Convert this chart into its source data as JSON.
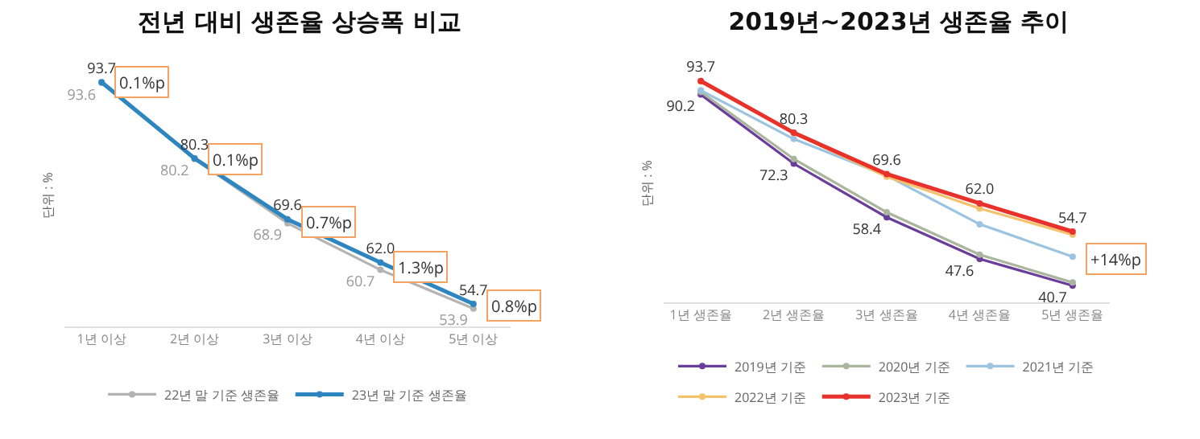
{
  "chart_data": [
    {
      "type": "line",
      "title": "전년 대비 생존율 상승폭 비교",
      "ylabel": "단위 : %",
      "categories": [
        "1년 이상",
        "2년 이상",
        "3년 이상",
        "4년 이상",
        "5년 이상"
      ],
      "series": [
        {
          "name": "22년 말 기준 생존율",
          "color": "#b3b3b3",
          "values": [
            93.6,
            80.2,
            68.9,
            60.7,
            53.9
          ],
          "value_labels": [
            "93.6",
            "80.2",
            "68.9",
            "60.7",
            "53.9"
          ]
        },
        {
          "name": "23년 말 기준 생존율",
          "color": "#2e86c1",
          "values": [
            93.7,
            80.3,
            69.6,
            62.0,
            54.7
          ],
          "value_labels": [
            "93.7",
            "80.3",
            "69.6",
            "62.0",
            "54.7"
          ]
        }
      ],
      "marker": "circle",
      "grid": false,
      "legend": "bottom",
      "tick_labels": "x",
      "annotations": [
        {
          "text": "0.1%p",
          "x": "1년 이상",
          "y": 93.65
        },
        {
          "text": "0.1%p",
          "x": "2년 이상",
          "y": 80.25
        },
        {
          "text": "0.7%p",
          "x": "3년 이상",
          "y": 69.25
        },
        {
          "text": "1.3%p",
          "x": "4년 이상",
          "y": 61.35
        },
        {
          "text": "0.8%p",
          "x": "5년 이상",
          "y": 54.3
        }
      ]
    },
    {
      "type": "line",
      "title": "2019년~2023년 생존율 추이",
      "ylabel": "단위 : %",
      "categories": [
        "1년 생존율",
        "2년 생존율",
        "3년 생존율",
        "4년 생존율",
        "5년 생존율"
      ],
      "series": [
        {
          "name": "2019년 기준",
          "color": "#6a3d9a",
          "values": [
            90.2,
            72.3,
            58.4,
            47.6,
            40.7
          ],
          "value_labels": [
            "90.2",
            "72.3",
            "58.4",
            "47.6",
            "40.7"
          ]
        },
        {
          "name": "2020년 기준",
          "color": "#a9b59c",
          "values": [
            90.9,
            73.5,
            59.7,
            48.7,
            41.5
          ]
        },
        {
          "name": "2021년 기준",
          "color": "#9cc3e0",
          "values": [
            91.3,
            78.7,
            69.2,
            56.6,
            48.2
          ]
        },
        {
          "name": "2022년 기준",
          "color": "#f5c26b",
          "values": [
            93.6,
            80.2,
            68.9,
            60.7,
            53.9
          ]
        },
        {
          "name": "2023년 기준",
          "color": "#e8312a",
          "values": [
            93.7,
            80.3,
            69.6,
            62.0,
            54.7
          ],
          "value_labels": [
            "93.7",
            "80.3",
            "69.6",
            "62.0",
            "54.7"
          ]
        }
      ],
      "marker": "circle",
      "grid": false,
      "legend": "bottom",
      "tick_labels": "x",
      "annotations": [
        {
          "text": "+14%p",
          "x": "5년 생존율",
          "y": 47.7
        }
      ]
    }
  ]
}
